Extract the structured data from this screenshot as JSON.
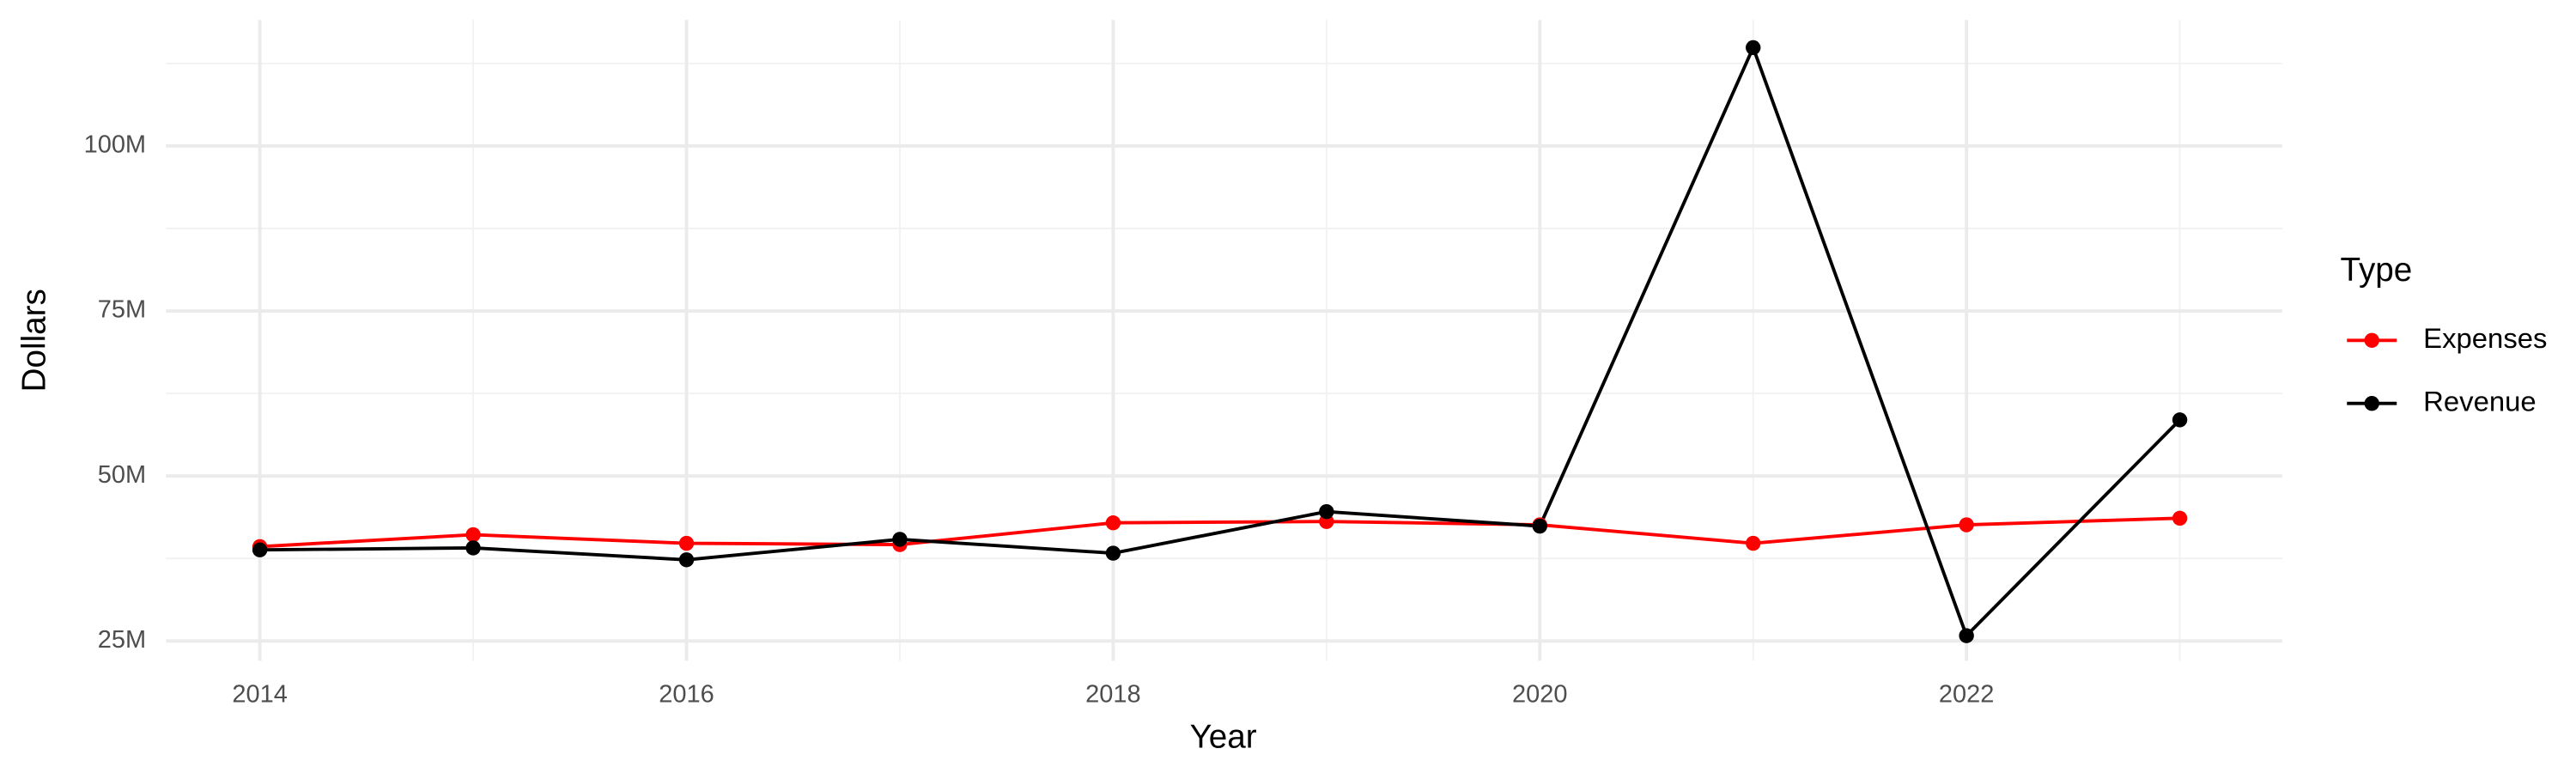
{
  "chart_data": {
    "type": "line",
    "x_label": "Year",
    "y_label": "Dollars",
    "legend_title": "Type",
    "legend_position": "right",
    "grid": true,
    "x": [
      2014,
      2015,
      2016,
      2017,
      2018,
      2019,
      2020,
      2021,
      2022,
      2023
    ],
    "series": [
      {
        "name": "Expenses",
        "color": "#ff0000",
        "values": [
          39300000,
          41100000,
          39800000,
          39600000,
          42900000,
          43100000,
          42600000,
          39800000,
          42600000,
          43600000
        ]
      },
      {
        "name": "Revenue",
        "color": "#000000",
        "values": [
          38800000,
          39100000,
          37300000,
          40400000,
          38300000,
          44600000,
          42400000,
          114900000,
          25800000,
          58500000
        ]
      }
    ],
    "xlim": [
      2013.56,
      2023.48
    ],
    "xticks": [
      2014,
      2016,
      2018,
      2020,
      2022
    ],
    "ylim": [
      22000000,
      119100000
    ],
    "yticks": [
      {
        "value": 25000000,
        "label": "25M"
      },
      {
        "value": 50000000,
        "label": "50M"
      },
      {
        "value": 75000000,
        "label": "75M"
      },
      {
        "value": 100000000,
        "label": "100M"
      }
    ]
  }
}
